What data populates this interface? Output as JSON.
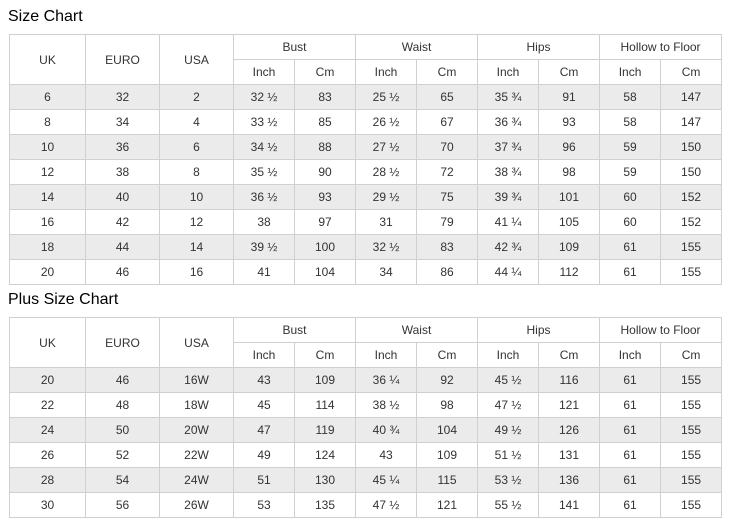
{
  "tables": [
    {
      "title": "Size Chart",
      "columns": [
        "UK",
        "EURO",
        "USA"
      ],
      "groups": [
        {
          "label": "Bust",
          "sub": [
            "Inch",
            "Cm"
          ]
        },
        {
          "label": "Waist",
          "sub": [
            "Inch",
            "Cm"
          ]
        },
        {
          "label": "Hips",
          "sub": [
            "Inch",
            "Cm"
          ]
        },
        {
          "label": "Hollow to Floor",
          "sub": [
            "Inch",
            "Cm"
          ]
        }
      ],
      "rows": [
        [
          "6",
          "32",
          "2",
          "32 ½",
          "83",
          "25 ½",
          "65",
          "35 ¾",
          "91",
          "58",
          "147"
        ],
        [
          "8",
          "34",
          "4",
          "33 ½",
          "85",
          "26 ½",
          "67",
          "36 ¾",
          "93",
          "58",
          "147"
        ],
        [
          "10",
          "36",
          "6",
          "34 ½",
          "88",
          "27 ½",
          "70",
          "37 ¾",
          "96",
          "59",
          "150"
        ],
        [
          "12",
          "38",
          "8",
          "35 ½",
          "90",
          "28 ½",
          "72",
          "38 ¾",
          "98",
          "59",
          "150"
        ],
        [
          "14",
          "40",
          "10",
          "36 ½",
          "93",
          "29 ½",
          "75",
          "39 ¾",
          "101",
          "60",
          "152"
        ],
        [
          "16",
          "42",
          "12",
          "38",
          "97",
          "31",
          "79",
          "41 ¼",
          "105",
          "60",
          "152"
        ],
        [
          "18",
          "44",
          "14",
          "39 ½",
          "100",
          "32 ½",
          "83",
          "42 ¾",
          "109",
          "61",
          "155"
        ],
        [
          "20",
          "46",
          "16",
          "41",
          "104",
          "34",
          "86",
          "44 ¼",
          "112",
          "61",
          "155"
        ]
      ]
    },
    {
      "title": "Plus Size Chart",
      "columns": [
        "UK",
        "EURO",
        "USA"
      ],
      "groups": [
        {
          "label": "Bust",
          "sub": [
            "Inch",
            "Cm"
          ]
        },
        {
          "label": "Waist",
          "sub": [
            "Inch",
            "Cm"
          ]
        },
        {
          "label": "Hips",
          "sub": [
            "Inch",
            "Cm"
          ]
        },
        {
          "label": "Hollow to Floor",
          "sub": [
            "Inch",
            "Cm"
          ]
        }
      ],
      "rows": [
        [
          "20",
          "46",
          "16W",
          "43",
          "109",
          "36 ¼",
          "92",
          "45 ½",
          "116",
          "61",
          "155"
        ],
        [
          "22",
          "48",
          "18W",
          "45",
          "114",
          "38 ½",
          "98",
          "47 ½",
          "121",
          "61",
          "155"
        ],
        [
          "24",
          "50",
          "20W",
          "47",
          "119",
          "40 ¾",
          "104",
          "49 ½",
          "126",
          "61",
          "155"
        ],
        [
          "26",
          "52",
          "22W",
          "49",
          "124",
          "43",
          "109",
          "51 ½",
          "131",
          "61",
          "155"
        ],
        [
          "28",
          "54",
          "24W",
          "51",
          "130",
          "45 ¼",
          "115",
          "53 ½",
          "136",
          "61",
          "155"
        ],
        [
          "30",
          "56",
          "26W",
          "53",
          "135",
          "47 ½",
          "121",
          "55 ½",
          "141",
          "61",
          "155"
        ]
      ]
    }
  ]
}
